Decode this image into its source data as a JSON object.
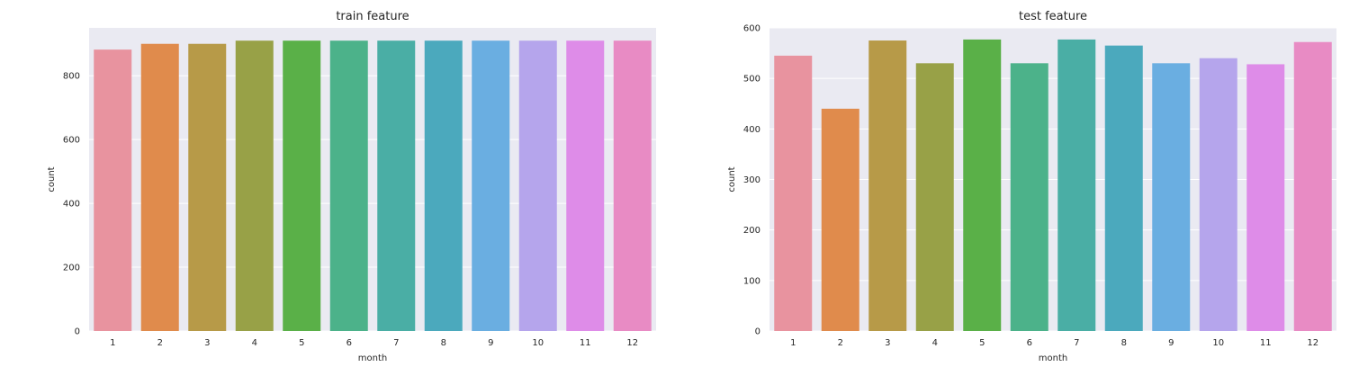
{
  "chart_data": [
    {
      "type": "bar",
      "title": "train feature",
      "xlabel": "month",
      "ylabel": "count",
      "ylim": [
        0,
        950
      ],
      "yticks": [
        0,
        200,
        400,
        600,
        800
      ],
      "grid": true,
      "categories": [
        "1",
        "2",
        "3",
        "4",
        "5",
        "6",
        "7",
        "8",
        "9",
        "10",
        "11",
        "12"
      ],
      "values": [
        882,
        900,
        900,
        910,
        910,
        910,
        910,
        910,
        910,
        910,
        910,
        910
      ]
    },
    {
      "type": "bar",
      "title": "test feature",
      "xlabel": "month",
      "ylabel": "count",
      "ylim": [
        0,
        600
      ],
      "yticks": [
        0,
        100,
        200,
        300,
        400,
        500,
        600
      ],
      "grid": true,
      "categories": [
        "1",
        "2",
        "3",
        "4",
        "5",
        "6",
        "7",
        "8",
        "9",
        "10",
        "11",
        "12"
      ],
      "values": [
        545,
        440,
        575,
        530,
        577,
        530,
        577,
        565,
        530,
        540,
        528,
        572
      ]
    }
  ],
  "colors": {
    "plot_bg": "#eaeaf2",
    "grid": "#ffffff",
    "bars": [
      "#e8939f",
      "#e08b4c",
      "#b79a48",
      "#98a147",
      "#5ab048",
      "#4cb28a",
      "#4aaea5",
      "#4ba9bd",
      "#6aaee1",
      "#b5a5ec",
      "#de8ce8",
      "#e88bc4"
    ]
  }
}
